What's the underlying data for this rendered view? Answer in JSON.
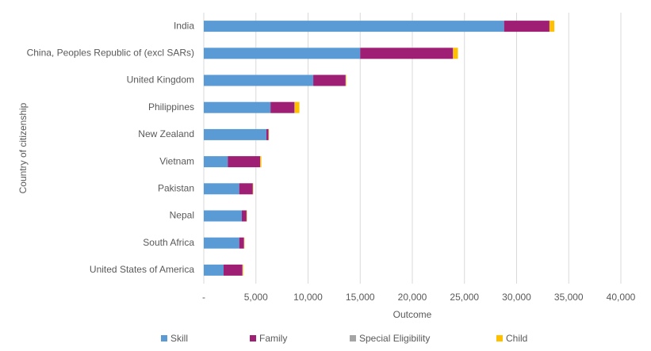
{
  "chart_data": {
    "type": "stacked-bar-horizontal",
    "y_axis_label": "Country of citizenship",
    "x_axis_label": "Outcome",
    "categories": [
      "India",
      "China, Peoples Republic of (excl SARs)",
      "United Kingdom",
      "Philippines",
      "New Zealand",
      "Vietnam",
      "Pakistan",
      "Nepal",
      "South Africa",
      "United States of America"
    ],
    "series": [
      {
        "name": "Skill",
        "color": "#5b9bd5",
        "values": [
          28800,
          15000,
          10500,
          6400,
          6000,
          2300,
          3400,
          3650,
          3400,
          1900
        ]
      },
      {
        "name": "Family",
        "color": "#9e1f74",
        "values": [
          4350,
          8900,
          3100,
          2300,
          200,
          3100,
          1300,
          450,
          450,
          1800
        ]
      },
      {
        "name": "Special Eligibility",
        "color": "#a5a5a5",
        "values": [
          20,
          20,
          20,
          20,
          20,
          20,
          20,
          20,
          20,
          20
        ]
      },
      {
        "name": "Child",
        "color": "#ffc000",
        "values": [
          450,
          450,
          50,
          450,
          30,
          100,
          30,
          30,
          30,
          60
        ]
      }
    ],
    "xlim": [
      0,
      40000
    ],
    "xticks": [
      {
        "value": 0,
        "label": "-"
      },
      {
        "value": 5000,
        "label": "5,000"
      },
      {
        "value": 10000,
        "label": "10,000"
      },
      {
        "value": 15000,
        "label": "15,000"
      },
      {
        "value": 20000,
        "label": "20,000"
      },
      {
        "value": 25000,
        "label": "25,000"
      },
      {
        "value": 30000,
        "label": "30,000"
      },
      {
        "value": 35000,
        "label": "35,000"
      },
      {
        "value": 40000,
        "label": "40,000"
      }
    ],
    "grid": true,
    "legend": "bottom"
  }
}
